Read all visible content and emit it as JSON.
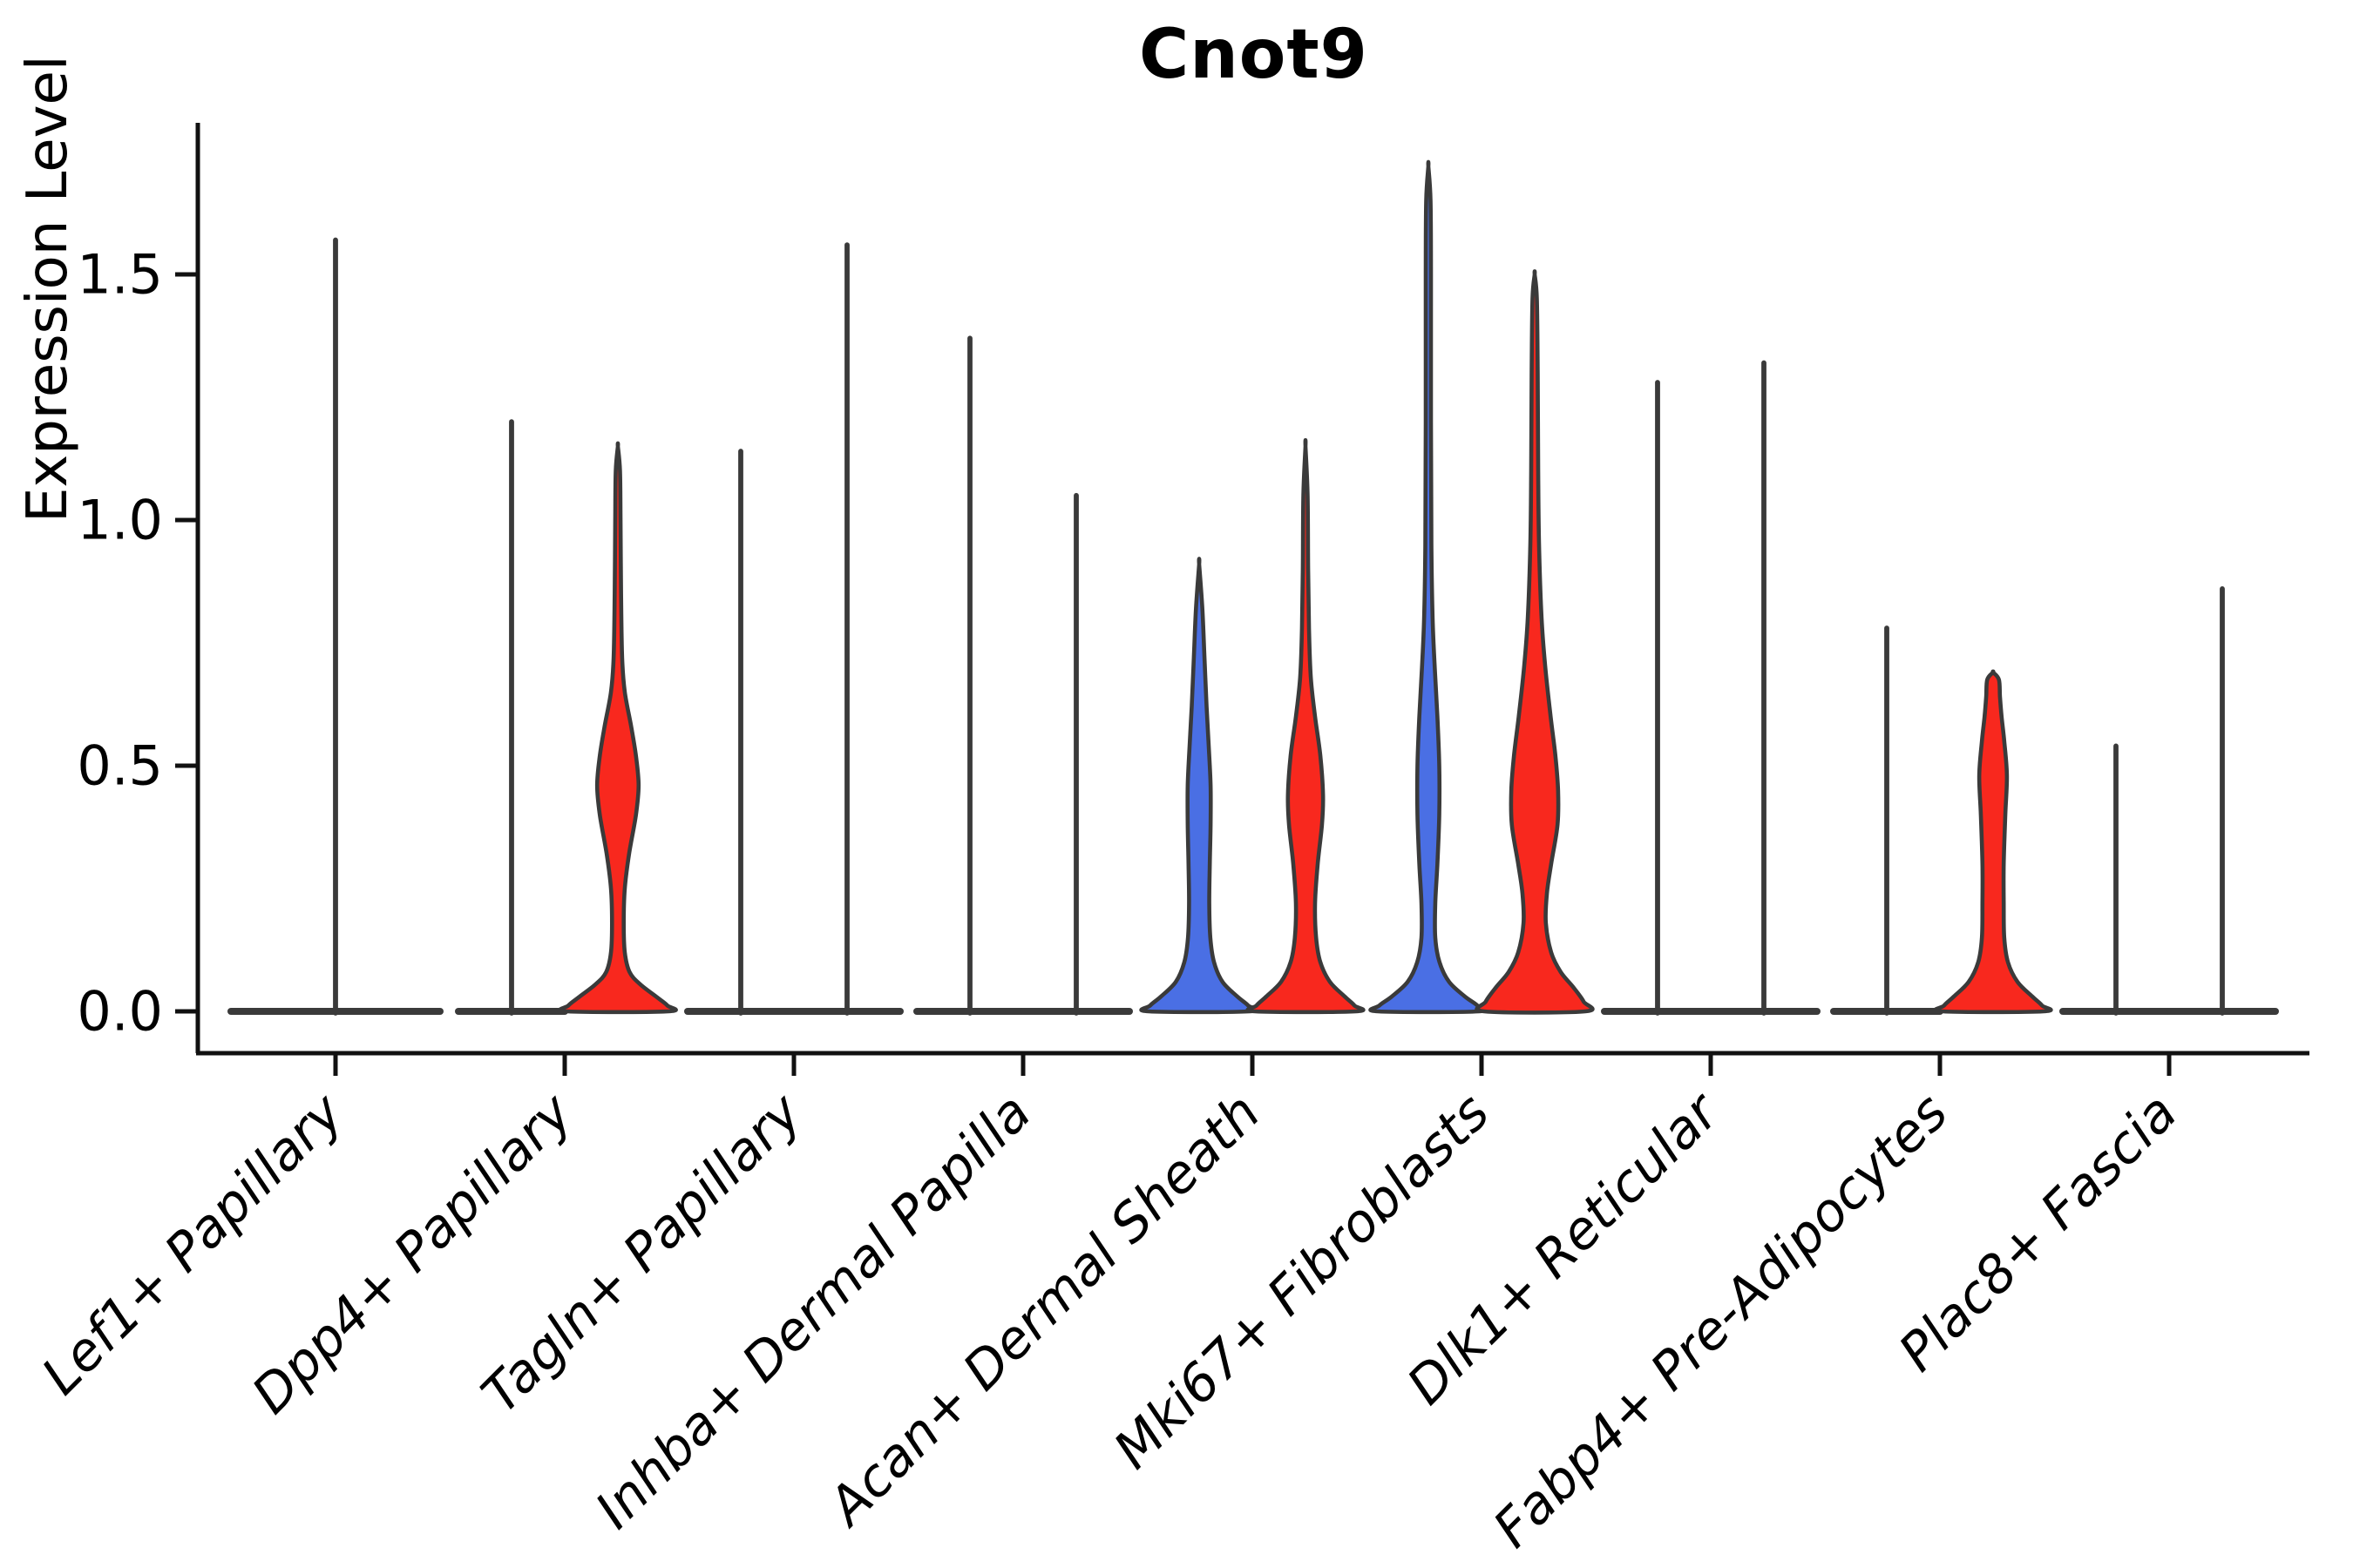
{
  "figure": {
    "title": "Cnot9",
    "ylabel": "Expression Level"
  },
  "chart_data": {
    "type": "violin",
    "title": "Cnot9",
    "xlabel": "",
    "ylabel": "Expression Level",
    "ylim": [
      -0.085,
      1.81
    ],
    "ytick_labels": [
      "0.0",
      "0.5",
      "1.0",
      "1.5"
    ],
    "ytick_values": [
      0,
      0.5,
      1.0,
      1.5
    ],
    "grid": false,
    "legend_position": "none",
    "colors": {
      "blue": "#4a6fe4",
      "red": "#f8281e",
      "outline": "#3a3a3a",
      "axis": "#111111",
      "text": "#000000"
    },
    "categories": [
      "Lef1+ Papillary",
      "Dpp4+ Papillary",
      "Tagln+ Papillary",
      "Inhba+ Dermal Papilla",
      "Acan+ Dermal Sheath",
      "Mki67+ Fibroblasts",
      "Dlk1+ Reticular",
      "Fabp4+ Pre-Adipocytes",
      "Plac8+ Fascia"
    ],
    "violins": [
      {
        "category": "Lef1+ Papillary",
        "slot": "center",
        "color": "none",
        "style": "collapsed",
        "max": 1.57
      },
      {
        "category": "Dpp4+ Papillary",
        "slot": "left",
        "color": "none",
        "style": "collapsed",
        "max": 1.2
      },
      {
        "category": "Dpp4+ Papillary",
        "slot": "right",
        "color": "red",
        "style": "shaped",
        "max": 1.15,
        "profile": [
          [
            0,
            0.95
          ],
          [
            0.012,
            0.93
          ],
          [
            0.03,
            0.72
          ],
          [
            0.055,
            0.42
          ],
          [
            0.08,
            0.22
          ],
          [
            0.12,
            0.13
          ],
          [
            0.18,
            0.11
          ],
          [
            0.25,
            0.13
          ],
          [
            0.32,
            0.21
          ],
          [
            0.4,
            0.34
          ],
          [
            0.46,
            0.39
          ],
          [
            0.52,
            0.34
          ],
          [
            0.58,
            0.25
          ],
          [
            0.65,
            0.13
          ],
          [
            0.72,
            0.08
          ],
          [
            0.85,
            0.06
          ],
          [
            1.0,
            0.05
          ],
          [
            1.1,
            0.04
          ],
          [
            1.15,
            0
          ]
        ]
      },
      {
        "category": "Tagln+ Papillary",
        "slot": "left",
        "color": "none",
        "style": "collapsed",
        "max": 1.14
      },
      {
        "category": "Tagln+ Papillary",
        "slot": "right",
        "color": "none",
        "style": "collapsed",
        "max": 1.56
      },
      {
        "category": "Inhba+ Dermal Papilla",
        "slot": "left",
        "color": "none",
        "style": "collapsed",
        "max": 1.37
      },
      {
        "category": "Inhba+ Dermal Papilla",
        "slot": "right",
        "color": "none",
        "style": "collapsed",
        "max": 1.05
      },
      {
        "category": "Acan+ Dermal Sheath",
        "slot": "left",
        "color": "blue",
        "style": "shaped",
        "max": 0.91,
        "profile": [
          [
            0,
            0.95
          ],
          [
            0.012,
            0.92
          ],
          [
            0.03,
            0.72
          ],
          [
            0.06,
            0.44
          ],
          [
            0.1,
            0.28
          ],
          [
            0.15,
            0.21
          ],
          [
            0.22,
            0.19
          ],
          [
            0.3,
            0.2
          ],
          [
            0.38,
            0.215
          ],
          [
            0.46,
            0.215
          ],
          [
            0.54,
            0.18
          ],
          [
            0.62,
            0.14
          ],
          [
            0.72,
            0.1
          ],
          [
            0.82,
            0.06
          ],
          [
            0.91,
            0
          ]
        ]
      },
      {
        "category": "Acan+ Dermal Sheath",
        "slot": "right",
        "color": "red",
        "style": "shaped",
        "max": 1.15,
        "profile": [
          [
            0,
            0.95
          ],
          [
            0.012,
            0.92
          ],
          [
            0.03,
            0.74
          ],
          [
            0.06,
            0.46
          ],
          [
            0.1,
            0.28
          ],
          [
            0.15,
            0.2
          ],
          [
            0.22,
            0.18
          ],
          [
            0.3,
            0.23
          ],
          [
            0.38,
            0.31
          ],
          [
            0.44,
            0.33
          ],
          [
            0.52,
            0.28
          ],
          [
            0.6,
            0.18
          ],
          [
            0.68,
            0.1
          ],
          [
            0.78,
            0.066
          ],
          [
            0.9,
            0.05
          ],
          [
            1.05,
            0.04
          ],
          [
            1.15,
            0
          ]
        ]
      },
      {
        "category": "Mki67+ Fibroblasts",
        "slot": "left",
        "color": "blue",
        "style": "shaped",
        "max": 1.72,
        "profile": [
          [
            0,
            0.95
          ],
          [
            0.012,
            0.92
          ],
          [
            0.03,
            0.69
          ],
          [
            0.06,
            0.39
          ],
          [
            0.1,
            0.21
          ],
          [
            0.15,
            0.13
          ],
          [
            0.22,
            0.13
          ],
          [
            0.3,
            0.17
          ],
          [
            0.4,
            0.205
          ],
          [
            0.5,
            0.205
          ],
          [
            0.6,
            0.17
          ],
          [
            0.7,
            0.12
          ],
          [
            0.8,
            0.08
          ],
          [
            0.95,
            0.057
          ],
          [
            1.2,
            0.049
          ],
          [
            1.5,
            0.049
          ],
          [
            1.65,
            0.041
          ],
          [
            1.72,
            0
          ]
        ]
      },
      {
        "category": "Mki67+ Fibroblasts",
        "slot": "right",
        "color": "red",
        "style": "shaped",
        "max": 1.5,
        "profile": [
          [
            0,
            0.95
          ],
          [
            0.02,
            0.92
          ],
          [
            0.05,
            0.72
          ],
          [
            0.08,
            0.49
          ],
          [
            0.12,
            0.31
          ],
          [
            0.18,
            0.21
          ],
          [
            0.24,
            0.23
          ],
          [
            0.3,
            0.31
          ],
          [
            0.38,
            0.43
          ],
          [
            0.45,
            0.44
          ],
          [
            0.52,
            0.39
          ],
          [
            0.6,
            0.3
          ],
          [
            0.7,
            0.2
          ],
          [
            0.8,
            0.13
          ],
          [
            0.95,
            0.082
          ],
          [
            1.1,
            0.066
          ],
          [
            1.3,
            0.057
          ],
          [
            1.45,
            0.041
          ],
          [
            1.5,
            0
          ]
        ]
      },
      {
        "category": "Dlk1+ Reticular",
        "slot": "left",
        "color": "none",
        "style": "collapsed",
        "max": 1.28
      },
      {
        "category": "Dlk1+ Reticular",
        "slot": "right",
        "color": "none",
        "style": "collapsed",
        "max": 1.32
      },
      {
        "category": "Fabp4+ Pre-Adipocytes",
        "slot": "left",
        "color": "none",
        "style": "collapsed",
        "max": 0.78
      },
      {
        "category": "Fabp4+ Pre-Adipocytes",
        "slot": "right",
        "color": "red",
        "style": "shaped",
        "max": 0.69,
        "profile": [
          [
            0,
            0.95
          ],
          [
            0.012,
            0.92
          ],
          [
            0.03,
            0.74
          ],
          [
            0.06,
            0.46
          ],
          [
            0.1,
            0.28
          ],
          [
            0.15,
            0.21
          ],
          [
            0.22,
            0.2
          ],
          [
            0.3,
            0.2
          ],
          [
            0.4,
            0.23
          ],
          [
            0.48,
            0.26
          ],
          [
            0.55,
            0.21
          ],
          [
            0.6,
            0.16
          ],
          [
            0.64,
            0.13
          ],
          [
            0.675,
            0.11
          ],
          [
            0.69,
            0
          ]
        ]
      },
      {
        "category": "Plac8+ Fascia",
        "slot": "left",
        "color": "none",
        "style": "collapsed",
        "max": 0.54
      },
      {
        "category": "Plac8+ Fascia",
        "slot": "right",
        "color": "none",
        "style": "collapsed",
        "max": 0.86
      }
    ]
  }
}
